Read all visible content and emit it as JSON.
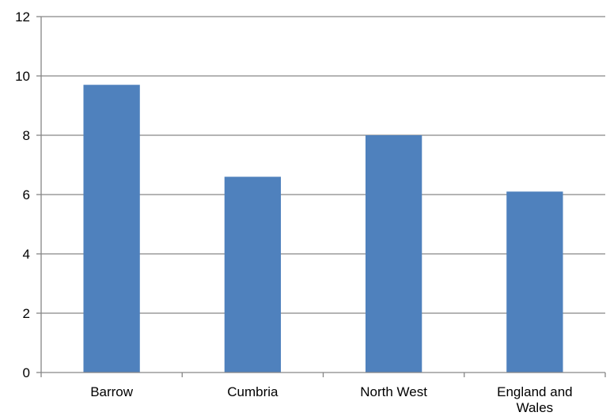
{
  "chart_data": {
    "type": "bar",
    "title": "",
    "xlabel": "",
    "ylabel": "",
    "categories": [
      [
        "Barrow"
      ],
      [
        "Cumbria"
      ],
      [
        "North West"
      ],
      [
        "England and",
        "Wales"
      ]
    ],
    "values": [
      9.7,
      6.6,
      8.0,
      6.1
    ],
    "ylim": [
      0,
      12
    ],
    "yticks": [
      "0",
      "2",
      "4",
      "6",
      "8",
      "10",
      "12"
    ],
    "grid": true,
    "legend": "none",
    "colors": {
      "bar": "#4f81bd",
      "grid": "#868686",
      "axis": "#868686"
    }
  }
}
